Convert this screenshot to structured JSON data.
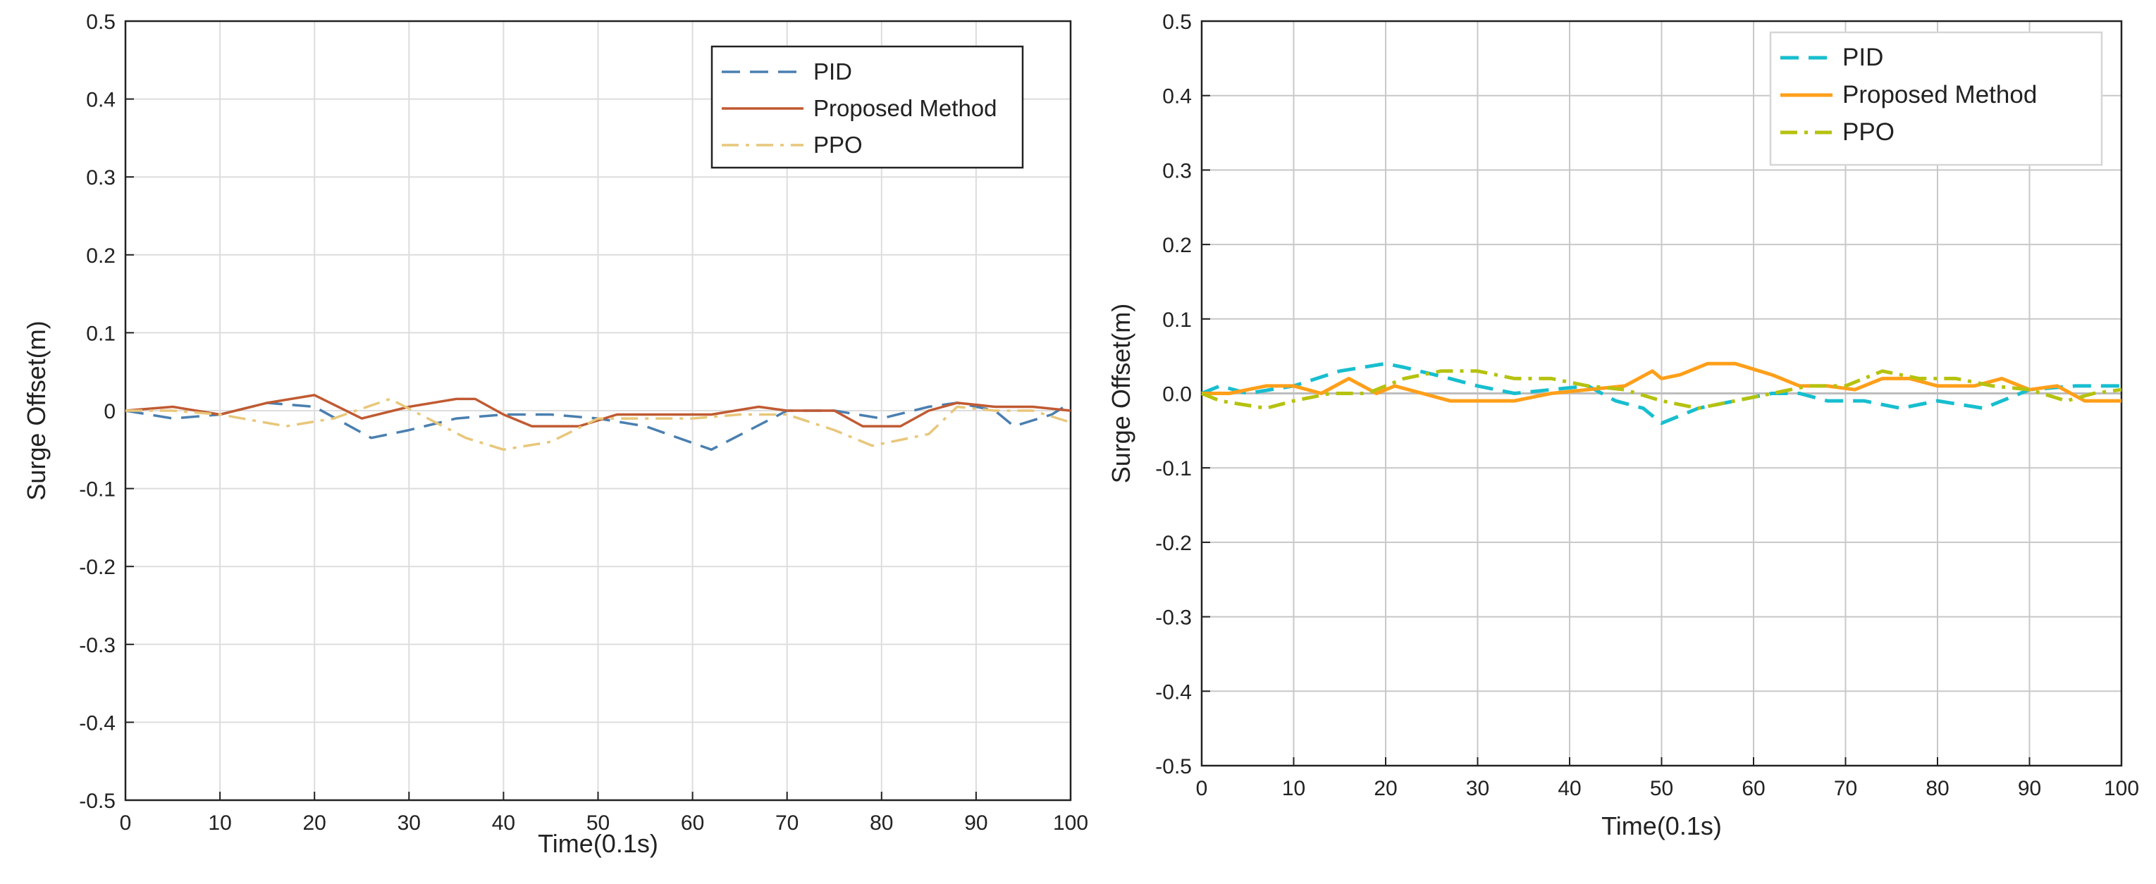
{
  "chart_data": [
    {
      "type": "line",
      "title": "",
      "xlabel": "Time(0.1s)",
      "ylabel": "Surge Offset(m)",
      "xlim": [
        0,
        100
      ],
      "ylim": [
        -0.5,
        0.5
      ],
      "xticks": [
        0,
        10,
        20,
        30,
        40,
        50,
        60,
        70,
        80,
        90,
        100
      ],
      "yticks": [
        0.5,
        0.4,
        0.3,
        0.2,
        0.1,
        0,
        -0.1,
        -0.2,
        -0.3,
        -0.4,
        -0.5
      ],
      "xtick_labels": [
        "0",
        "10",
        "20",
        "30",
        "40",
        "50",
        "60",
        "70",
        "80",
        "90",
        "100"
      ],
      "ytick_labels": [
        "0.5",
        "0.4",
        "0.3",
        "0.2",
        "0.1",
        "0",
        "-0.1",
        "-0.2",
        "-0.3",
        "-0.4",
        "-0.5"
      ],
      "grid": true,
      "legend_position": "top-right",
      "series": [
        {
          "name": "PID",
          "color": "#4a7fb0",
          "dash": "dashed",
          "x": [
            0,
            5,
            10,
            15,
            20,
            26,
            30,
            35,
            40,
            45,
            50,
            55,
            62,
            66,
            70,
            75,
            80,
            85,
            88,
            92,
            94,
            98,
            100
          ],
          "y": [
            0,
            -0.01,
            -0.005,
            0.01,
            0.005,
            -0.035,
            -0.025,
            -0.01,
            -0.005,
            -0.005,
            -0.01,
            -0.02,
            -0.05,
            -0.025,
            0,
            0,
            -0.01,
            0.005,
            0.01,
            0,
            -0.02,
            -0.005,
            0.01
          ]
        },
        {
          "name": "Proposed Method",
          "color": "#c05a32",
          "dash": "solid",
          "x": [
            0,
            5,
            10,
            15,
            20,
            25,
            30,
            35,
            37,
            40,
            43,
            48,
            52,
            58,
            62,
            67,
            70,
            75,
            78,
            82,
            85,
            88,
            92,
            96,
            100
          ],
          "y": [
            0,
            0.005,
            -0.005,
            0.01,
            0.02,
            -0.01,
            0.005,
            0.015,
            0.015,
            -0.005,
            -0.02,
            -0.02,
            -0.005,
            -0.005,
            -0.005,
            0.005,
            0,
            0,
            -0.02,
            -0.02,
            0,
            0.01,
            0.005,
            0.005,
            0
          ]
        },
        {
          "name": "PPO",
          "color": "#e8c77a",
          "dash": "dashdot",
          "x": [
            0,
            5,
            10,
            17,
            22,
            28,
            32,
            36,
            40,
            45,
            50,
            55,
            60,
            65,
            70,
            75,
            79,
            85,
            88,
            92,
            96,
            100
          ],
          "y": [
            0,
            0,
            -0.005,
            -0.02,
            -0.01,
            0.015,
            -0.01,
            -0.035,
            -0.05,
            -0.04,
            -0.01,
            -0.01,
            -0.01,
            -0.005,
            -0.005,
            -0.025,
            -0.045,
            -0.03,
            0.005,
            0,
            0,
            -0.015
          ]
        }
      ]
    },
    {
      "type": "line",
      "title": "",
      "xlabel": "Time(0.1s)",
      "ylabel": "Surge Offset(m)",
      "xlim": [
        0,
        100
      ],
      "ylim": [
        -0.5,
        0.5
      ],
      "xticks": [
        0,
        10,
        20,
        30,
        40,
        50,
        60,
        70,
        80,
        90,
        100
      ],
      "yticks": [
        0.5,
        0.4,
        0.3,
        0.2,
        0.1,
        0.0,
        -0.1,
        -0.2,
        -0.3,
        -0.4,
        -0.5
      ],
      "xtick_labels": [
        "0",
        "10",
        "20",
        "30",
        "40",
        "50",
        "60",
        "70",
        "80",
        "90",
        "100"
      ],
      "ytick_labels": [
        "0.5",
        "0.4",
        "0.3",
        "0.2",
        "0.1",
        "0.0",
        "-0.1",
        "-0.2",
        "-0.3",
        "-0.4",
        "-0.5"
      ],
      "grid": true,
      "legend_position": "top-right",
      "series": [
        {
          "name": "PID",
          "color": "#17becf",
          "dash": "dashed",
          "x": [
            0,
            2,
            5,
            10,
            15,
            20,
            22,
            27,
            30,
            34,
            38,
            42,
            45,
            48,
            50,
            54,
            58,
            62,
            65,
            68,
            72,
            76,
            80,
            85,
            90,
            95,
            100
          ],
          "y": [
            0,
            0.01,
            0,
            0.01,
            0.03,
            0.04,
            0.035,
            0.02,
            0.01,
            0,
            0.005,
            0.01,
            -0.01,
            -0.02,
            -0.04,
            -0.02,
            -0.01,
            0,
            0,
            -0.01,
            -0.01,
            -0.02,
            -0.01,
            -0.02,
            0.005,
            0.01,
            0.01
          ]
        },
        {
          "name": "Proposed Method",
          "color": "#ff9f1a",
          "dash": "solid",
          "x": [
            0,
            3,
            7,
            10,
            13,
            16,
            19,
            21,
            24,
            27,
            30,
            34,
            38,
            42,
            46,
            49,
            50,
            52,
            55,
            58,
            62,
            65,
            68,
            71,
            74,
            77,
            80,
            84,
            87,
            90,
            93,
            96,
            100
          ],
          "y": [
            0,
            0,
            0.01,
            0.01,
            0,
            0.02,
            0,
            0.01,
            0,
            -0.01,
            -0.01,
            -0.01,
            0,
            0.005,
            0.01,
            0.03,
            0.02,
            0.025,
            0.04,
            0.04,
            0.025,
            0.01,
            0.01,
            0.005,
            0.02,
            0.02,
            0.01,
            0.01,
            0.02,
            0.005,
            0.01,
            -0.01,
            -0.01
          ]
        },
        {
          "name": "PPO",
          "color": "#b5c20f",
          "dash": "dashdot",
          "x": [
            0,
            2,
            7,
            10,
            14,
            18,
            22,
            26,
            30,
            34,
            38,
            42,
            46,
            50,
            54,
            58,
            62,
            66,
            70,
            74,
            78,
            82,
            86,
            90,
            94,
            97,
            100
          ],
          "y": [
            0,
            -0.01,
            -0.02,
            -0.01,
            0,
            0,
            0.02,
            0.03,
            0.03,
            0.02,
            0.02,
            0.01,
            0.005,
            -0.01,
            -0.02,
            -0.01,
            0,
            0.01,
            0.01,
            0.03,
            0.02,
            0.02,
            0.01,
            0.005,
            -0.01,
            0,
            0.005
          ]
        }
      ]
    }
  ]
}
